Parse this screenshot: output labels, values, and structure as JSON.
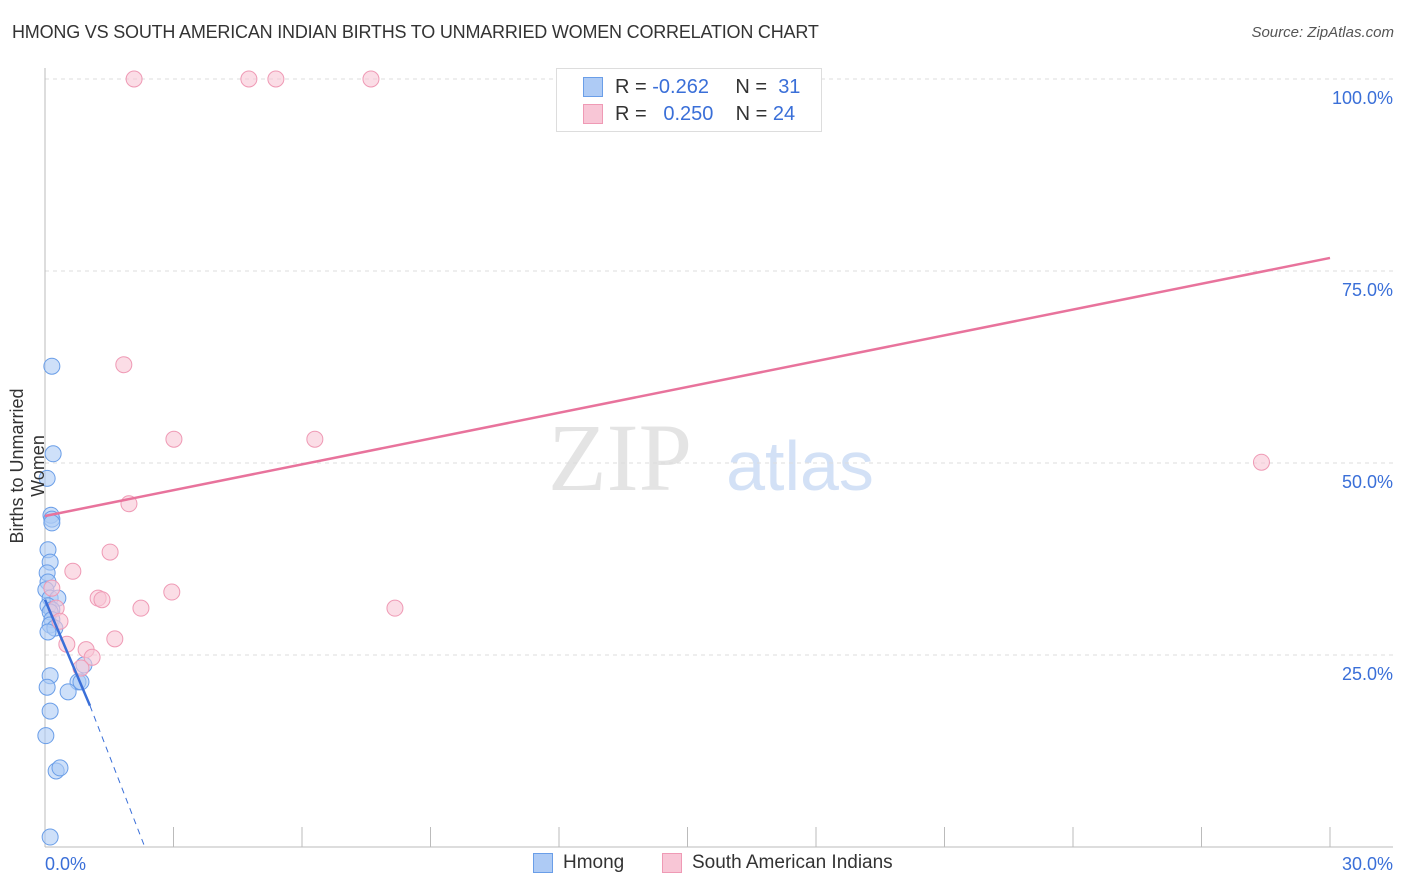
{
  "title": "HMONG VS SOUTH AMERICAN INDIAN BIRTHS TO UNMARRIED WOMEN CORRELATION CHART",
  "source": "Source: ZipAtlas.com",
  "watermark": {
    "zip": "ZIP",
    "atlas": "atlas"
  },
  "legend": {
    "r_label": "R =",
    "n_label": "N =",
    "rows": [
      {
        "r": "-0.262",
        "n": "31"
      },
      {
        "r": "0.250",
        "n": "24"
      }
    ]
  },
  "chart_data": {
    "type": "scatter",
    "title": "HMONG VS SOUTH AMERICAN INDIAN BIRTHS TO UNMARRIED WOMEN CORRELATION CHART",
    "xlabel": "",
    "ylabel": "Births to Unmarried Women",
    "xlim": [
      0,
      30
    ],
    "ylim": [
      0,
      100
    ],
    "x_tick_labels": [
      "0.0%",
      "30.0%"
    ],
    "y_tick_labels": [
      "100.0%",
      "75.0%",
      "50.0%",
      "25.0%"
    ],
    "y_ticks": [
      100,
      75,
      50,
      25
    ],
    "legend_placement": "top-center",
    "series": [
      {
        "name": "Hmong",
        "color": "#6a9ee8",
        "fill": "#aecbf5",
        "points": [
          [
            0.16,
            62.6
          ],
          [
            0.19,
            51.2
          ],
          [
            0.05,
            48.0
          ],
          [
            0.14,
            43.2
          ],
          [
            0.16,
            42.7
          ],
          [
            0.16,
            42.2
          ],
          [
            0.07,
            38.7
          ],
          [
            0.12,
            37.1
          ],
          [
            0.05,
            35.7
          ],
          [
            0.07,
            34.5
          ],
          [
            0.02,
            33.5
          ],
          [
            0.12,
            32.4
          ],
          [
            0.3,
            32.4
          ],
          [
            0.07,
            31.4
          ],
          [
            0.16,
            30.9
          ],
          [
            0.12,
            30.6
          ],
          [
            0.16,
            29.6
          ],
          [
            0.12,
            28.9
          ],
          [
            0.23,
            28.5
          ],
          [
            0.07,
            28.0
          ],
          [
            0.91,
            23.7
          ],
          [
            0.77,
            21.5
          ],
          [
            0.84,
            21.5
          ],
          [
            0.12,
            22.3
          ],
          [
            0.05,
            20.8
          ],
          [
            0.54,
            20.2
          ],
          [
            0.12,
            17.7
          ],
          [
            0.02,
            14.5
          ],
          [
            0.26,
            9.9
          ],
          [
            0.35,
            10.3
          ],
          [
            0.12,
            1.3
          ]
        ],
        "trend": {
          "solid": [
            [
              0,
              32.2
            ],
            [
              1.05,
              18.4
            ]
          ],
          "dashed": [
            [
              1.05,
              18.4
            ],
            [
              2.33,
              0
            ]
          ]
        }
      },
      {
        "name": "South American Indians",
        "color": "#ef9ab5",
        "fill": "#f8c6d6",
        "points": [
          [
            2.08,
            100
          ],
          [
            4.76,
            100
          ],
          [
            5.39,
            100
          ],
          [
            7.61,
            100
          ],
          [
            1.84,
            62.8
          ],
          [
            3.01,
            53.1
          ],
          [
            6.3,
            53.1
          ],
          [
            28.4,
            50.1
          ],
          [
            1.96,
            44.7
          ],
          [
            1.52,
            38.4
          ],
          [
            0.65,
            35.9
          ],
          [
            0.16,
            33.7
          ],
          [
            2.96,
            33.2
          ],
          [
            1.24,
            32.4
          ],
          [
            1.33,
            32.2
          ],
          [
            2.24,
            31.1
          ],
          [
            8.17,
            31.1
          ],
          [
            0.26,
            31.1
          ],
          [
            0.35,
            29.4
          ],
          [
            0.51,
            26.4
          ],
          [
            1.63,
            27.1
          ],
          [
            0.96,
            25.7
          ],
          [
            1.1,
            24.7
          ],
          [
            0.84,
            23.3
          ]
        ],
        "trend": {
          "solid": [
            [
              0,
              43.1
            ],
            [
              30,
              76.7
            ]
          ]
        }
      }
    ]
  },
  "bottom_legend": [
    "Hmong",
    "South American Indians"
  ]
}
